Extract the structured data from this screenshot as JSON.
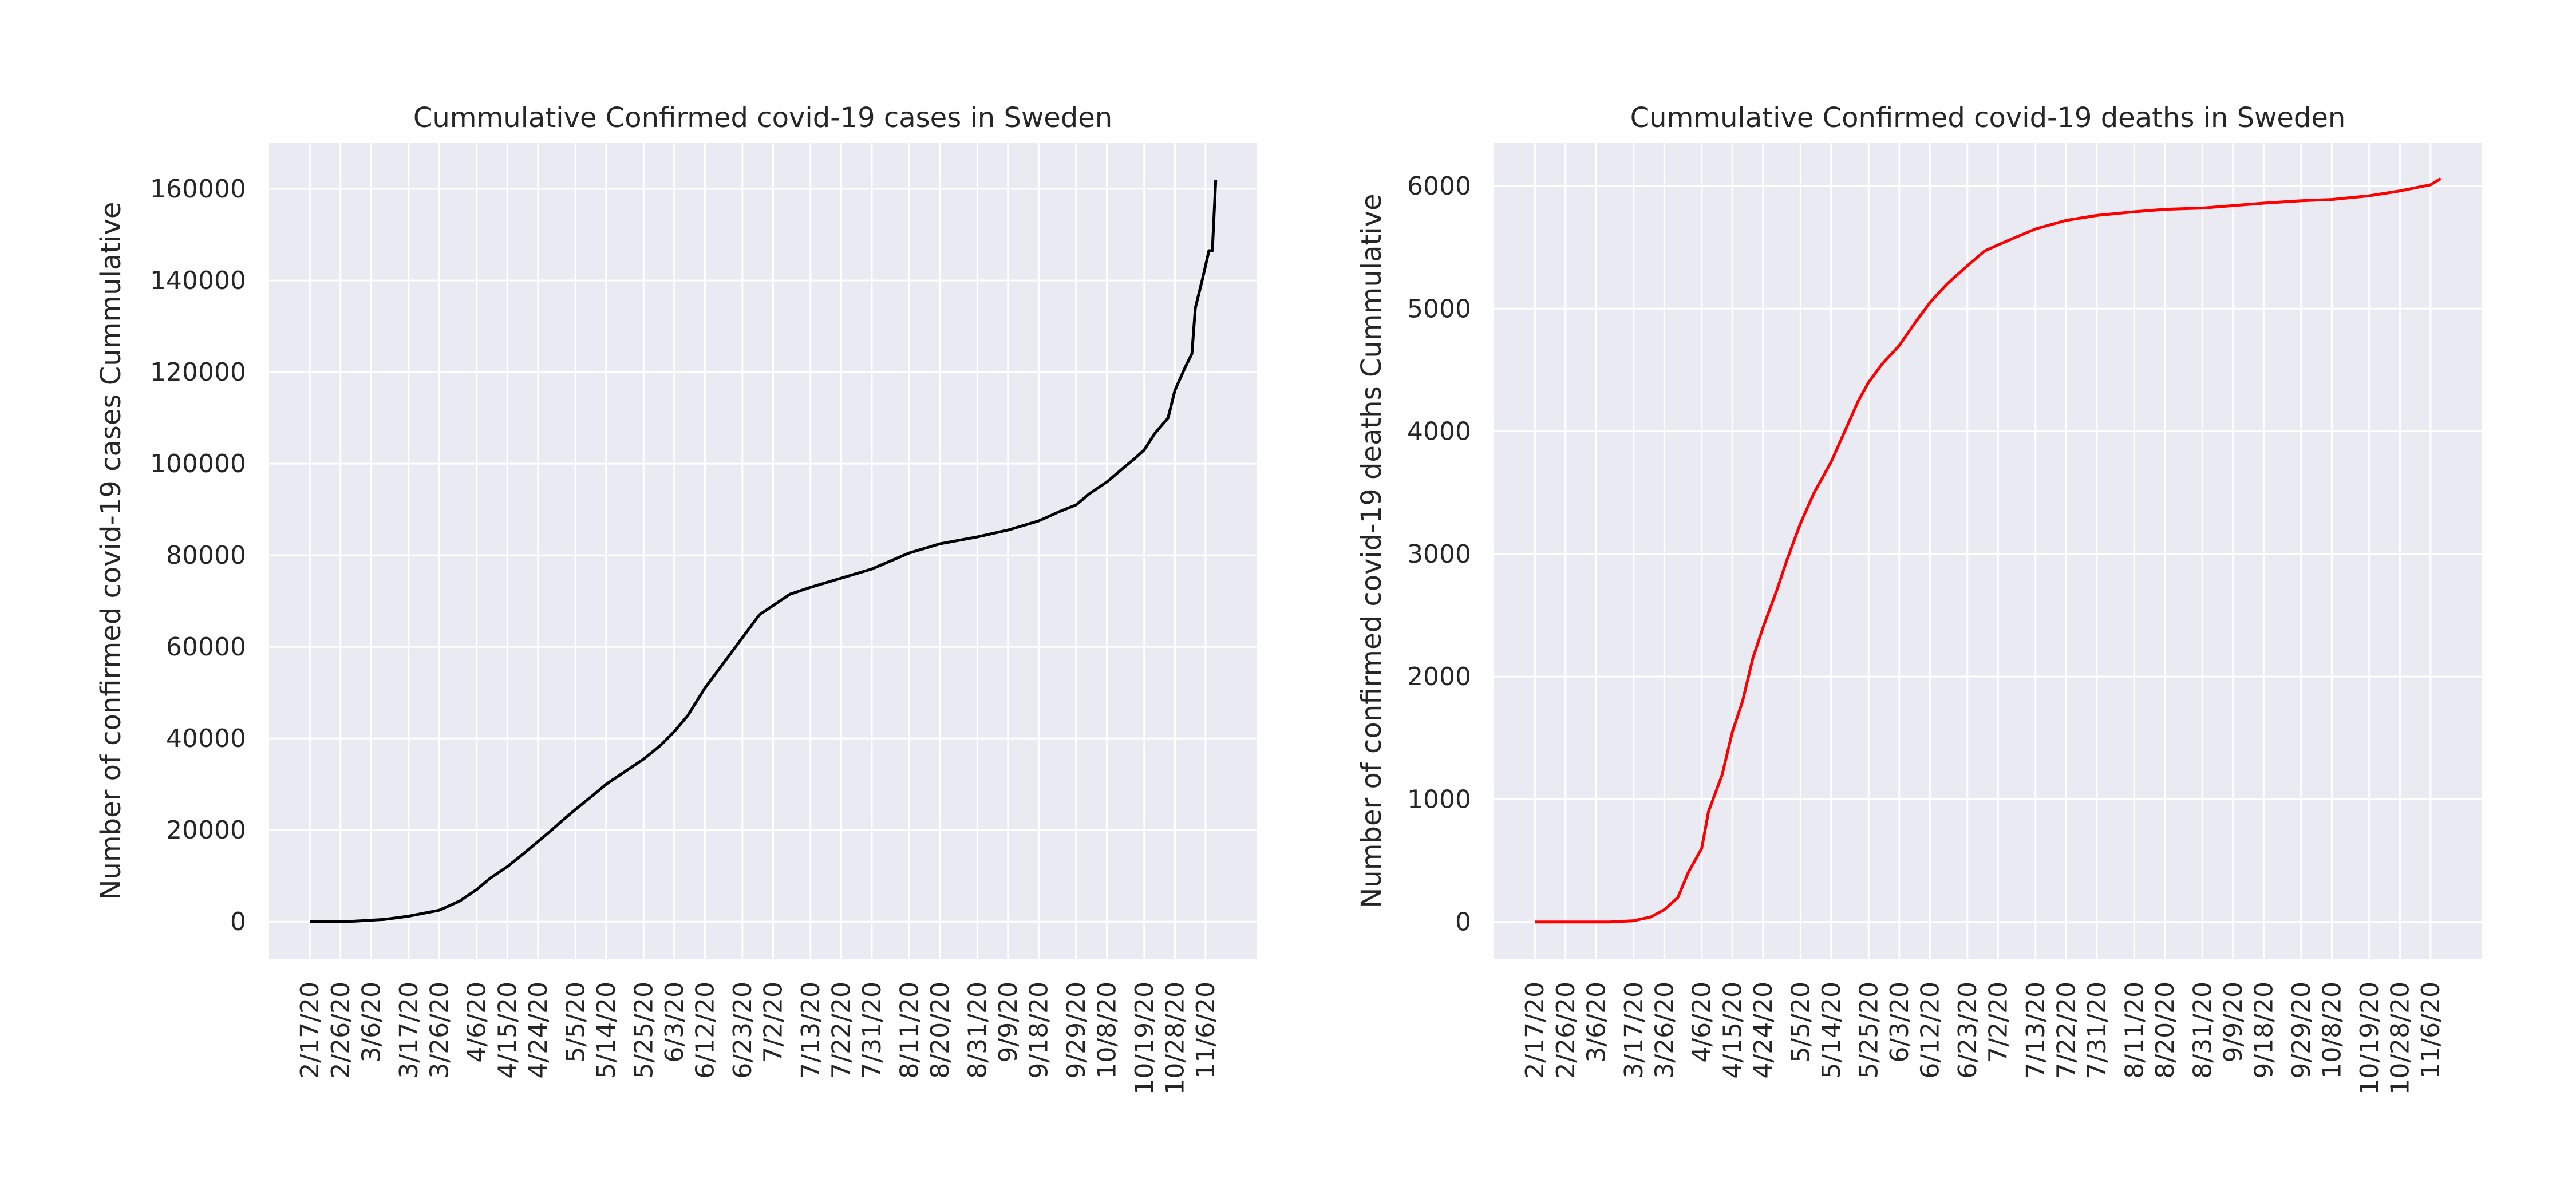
{
  "chart_data": [
    {
      "type": "line",
      "title": "Cummulative Confirmed covid-19 cases in Sweden",
      "xlabel": "",
      "ylabel": "Number of confirmed covid-19 cases Cummulative",
      "grid": true,
      "line_color": "#000000",
      "background_color": "#EAEAF2",
      "ylim": [
        -8100,
        170000
      ],
      "yticks": [
        0,
        20000,
        40000,
        60000,
        80000,
        100000,
        120000,
        140000,
        160000
      ],
      "x_ticklabels": [
        "2/17/20",
        "2/26/20",
        "3/6/20",
        "3/17/20",
        "3/26/20",
        "4/6/20",
        "4/15/20",
        "4/24/20",
        "5/5/20",
        "5/14/20",
        "5/25/20",
        "6/3/20",
        "6/12/20",
        "6/23/20",
        "7/2/20",
        "7/13/20",
        "7/22/20",
        "7/31/20",
        "8/11/20",
        "8/20/20",
        "8/31/20",
        "9/9/20",
        "9/18/20",
        "9/29/20",
        "10/8/20",
        "10/19/20",
        "10/28/20",
        "11/6/20"
      ],
      "points": [
        [
          "2/17/20",
          0
        ],
        [
          "3/1/20",
          100
        ],
        [
          "3/10/20",
          500
        ],
        [
          "3/17/20",
          1200
        ],
        [
          "3/26/20",
          2500
        ],
        [
          "4/1/20",
          4500
        ],
        [
          "4/6/20",
          7000
        ],
        [
          "4/10/20",
          9500
        ],
        [
          "4/15/20",
          12000
        ],
        [
          "4/20/20",
          15000
        ],
        [
          "4/24/20",
          17500
        ],
        [
          "4/28/20",
          20000
        ],
        [
          "5/1/20",
          22000
        ],
        [
          "5/5/20",
          24500
        ],
        [
          "5/10/20",
          27500
        ],
        [
          "5/14/20",
          30000
        ],
        [
          "5/20/20",
          33000
        ],
        [
          "5/25/20",
          35500
        ],
        [
          "5/30/20",
          38500
        ],
        [
          "6/3/20",
          41500
        ],
        [
          "6/7/20",
          45000
        ],
        [
          "6/12/20",
          51000
        ],
        [
          "6/17/20",
          56000
        ],
        [
          "6/23/20",
          62000
        ],
        [
          "6/28/20",
          67000
        ],
        [
          "7/2/20",
          69000
        ],
        [
          "7/7/20",
          71500
        ],
        [
          "7/13/20",
          73000
        ],
        [
          "7/22/20",
          75000
        ],
        [
          "7/31/20",
          77000
        ],
        [
          "8/11/20",
          80500
        ],
        [
          "8/20/20",
          82500
        ],
        [
          "8/31/20",
          84000
        ],
        [
          "9/9/20",
          85500
        ],
        [
          "9/18/20",
          87500
        ],
        [
          "9/24/20",
          89500
        ],
        [
          "9/29/20",
          91000
        ],
        [
          "10/3/20",
          93500
        ],
        [
          "10/8/20",
          96000
        ],
        [
          "10/12/20",
          98500
        ],
        [
          "10/16/20",
          101000
        ],
        [
          "10/19/20",
          103000
        ],
        [
          "10/22/20",
          106500
        ],
        [
          "10/26/20",
          110000
        ],
        [
          "10/28/20",
          116000
        ],
        [
          "10/31/20",
          121000
        ],
        [
          "11/2/20",
          124000
        ],
        [
          "11/3/20",
          134000
        ],
        [
          "11/5/20",
          140000
        ],
        [
          "11/7/20",
          146500
        ],
        [
          "11/8/20",
          146500
        ],
        [
          "11/9/20",
          162000
        ]
      ]
    },
    {
      "type": "line",
      "title": "Cummulative Confirmed covid-19 deaths in Sweden",
      "xlabel": "",
      "ylabel": "Number of confirmed covid-19 deaths Cummulative",
      "grid": true,
      "line_color": "#FF0000",
      "background_color": "#EAEAF2",
      "ylim": [
        -300,
        6350
      ],
      "yticks": [
        0,
        1000,
        2000,
        3000,
        4000,
        5000,
        6000
      ],
      "x_ticklabels": [
        "2/17/20",
        "2/26/20",
        "3/6/20",
        "3/17/20",
        "3/26/20",
        "4/6/20",
        "4/15/20",
        "4/24/20",
        "5/5/20",
        "5/14/20",
        "5/25/20",
        "6/3/20",
        "6/12/20",
        "6/23/20",
        "7/2/20",
        "7/13/20",
        "7/22/20",
        "7/31/20",
        "8/11/20",
        "8/20/20",
        "8/31/20",
        "9/9/20",
        "9/18/20",
        "9/29/20",
        "10/8/20",
        "10/19/20",
        "10/28/20",
        "11/6/20"
      ],
      "points": [
        [
          "2/17/20",
          0
        ],
        [
          "3/10/20",
          0
        ],
        [
          "3/17/20",
          10
        ],
        [
          "3/22/20",
          40
        ],
        [
          "3/26/20",
          100
        ],
        [
          "3/30/20",
          200
        ],
        [
          "4/2/20",
          400
        ],
        [
          "4/6/20",
          600
        ],
        [
          "4/8/20",
          900
        ],
        [
          "4/12/20",
          1200
        ],
        [
          "4/15/20",
          1550
        ],
        [
          "4/18/20",
          1800
        ],
        [
          "4/21/20",
          2150
        ],
        [
          "4/24/20",
          2400
        ],
        [
          "4/28/20",
          2700
        ],
        [
          "5/1/20",
          2950
        ],
        [
          "5/5/20",
          3250
        ],
        [
          "5/9/20",
          3500
        ],
        [
          "5/14/20",
          3750
        ],
        [
          "5/18/20",
          4000
        ],
        [
          "5/22/20",
          4250
        ],
        [
          "5/25/20",
          4400
        ],
        [
          "5/29/20",
          4550
        ],
        [
          "6/3/20",
          4700
        ],
        [
          "6/8/20",
          4900
        ],
        [
          "6/12/20",
          5050
        ],
        [
          "6/17/20",
          5200
        ],
        [
          "6/23/20",
          5350
        ],
        [
          "6/28/20",
          5470
        ],
        [
          "7/2/20",
          5520
        ],
        [
          "7/7/20",
          5580
        ],
        [
          "7/13/20",
          5650
        ],
        [
          "7/22/20",
          5720
        ],
        [
          "7/31/20",
          5760
        ],
        [
          "8/11/20",
          5790
        ],
        [
          "8/20/20",
          5810
        ],
        [
          "8/31/20",
          5820
        ],
        [
          "9/9/20",
          5840
        ],
        [
          "9/18/20",
          5860
        ],
        [
          "9/29/20",
          5880
        ],
        [
          "10/8/20",
          5890
        ],
        [
          "10/19/20",
          5920
        ],
        [
          "10/28/20",
          5960
        ],
        [
          "11/6/20",
          6010
        ],
        [
          "11/9/20",
          6060
        ]
      ]
    }
  ]
}
